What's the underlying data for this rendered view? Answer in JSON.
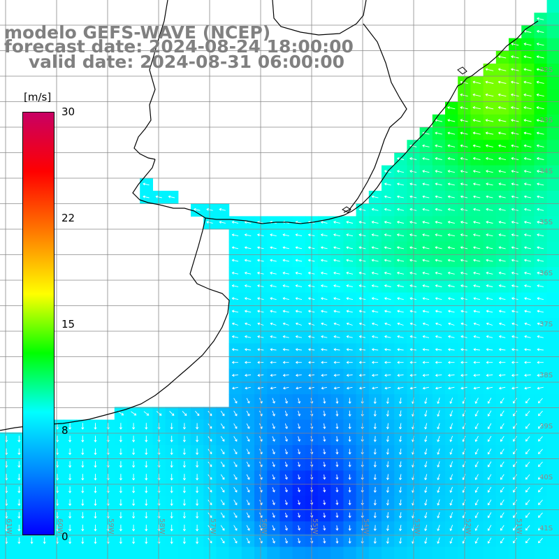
{
  "title": {
    "line1": "modelo GEFS-WAVE (NCEP)",
    "line2": "forecast date: 2024-08-24 18:00:00",
    "line3": "    valid date: 2024-08-31 06:00:00"
  },
  "colorbar": {
    "unit": "[m/s]",
    "range": [
      0,
      30
    ],
    "ticks": [
      {
        "value": 30,
        "label": "30"
      },
      {
        "value": 22,
        "label": "22"
      },
      {
        "value": 15,
        "label": "15"
      },
      {
        "value": 8,
        "label": "8"
      },
      {
        "value": 0,
        "label": "0"
      }
    ],
    "stops": [
      "#0000ff",
      "#0080ff",
      "#00ffff",
      "#00ff00",
      "#ffff00",
      "#ff8000",
      "#ff0000",
      "#c80064"
    ]
  },
  "map": {
    "region": {
      "lon": [
        -61.2,
        -50.2
      ],
      "lat": [
        -41.9,
        -31.0
      ]
    },
    "grid_spacing_deg": 0.5,
    "grid_color": "#888888",
    "coast_color": "#000000",
    "arrow_color": "#ffffff",
    "lon_labels": [
      "61W",
      "60W",
      "59W",
      "58W",
      "57W",
      "56W",
      "55W",
      "54W",
      "53W",
      "52W",
      "51W"
    ],
    "lat_labels": [
      "32S",
      "33S",
      "34S",
      "35S",
      "36S",
      "37S",
      "38S",
      "39S",
      "40S",
      "41S"
    ]
  }
}
